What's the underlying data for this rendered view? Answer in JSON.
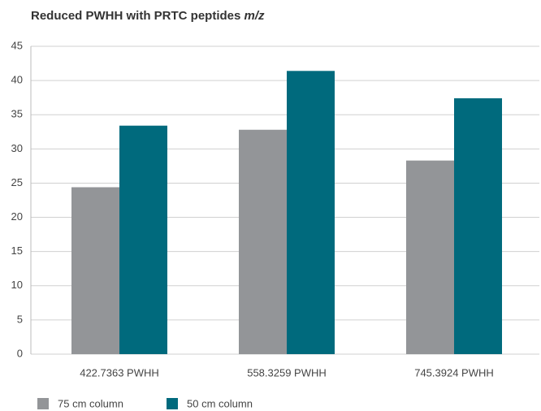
{
  "chart_data": {
    "type": "bar",
    "title": "Reduced PWHH with PRTC peptides",
    "title_suffix": "m/z",
    "categories": [
      "422.7363 PWHH",
      "558.3259 PWHH",
      "745.3924 PWHH"
    ],
    "series": [
      {
        "name": "75 cm column",
        "color": "#939598",
        "values": [
          24.4,
          32.8,
          28.3
        ]
      },
      {
        "name": "50 cm column",
        "color": "#006a7d",
        "values": [
          33.4,
          41.4,
          37.4
        ]
      }
    ],
    "ylim": [
      0,
      45
    ],
    "yticks": [
      0,
      5,
      10,
      15,
      20,
      25,
      30,
      35,
      40,
      45
    ],
    "grid": true
  }
}
